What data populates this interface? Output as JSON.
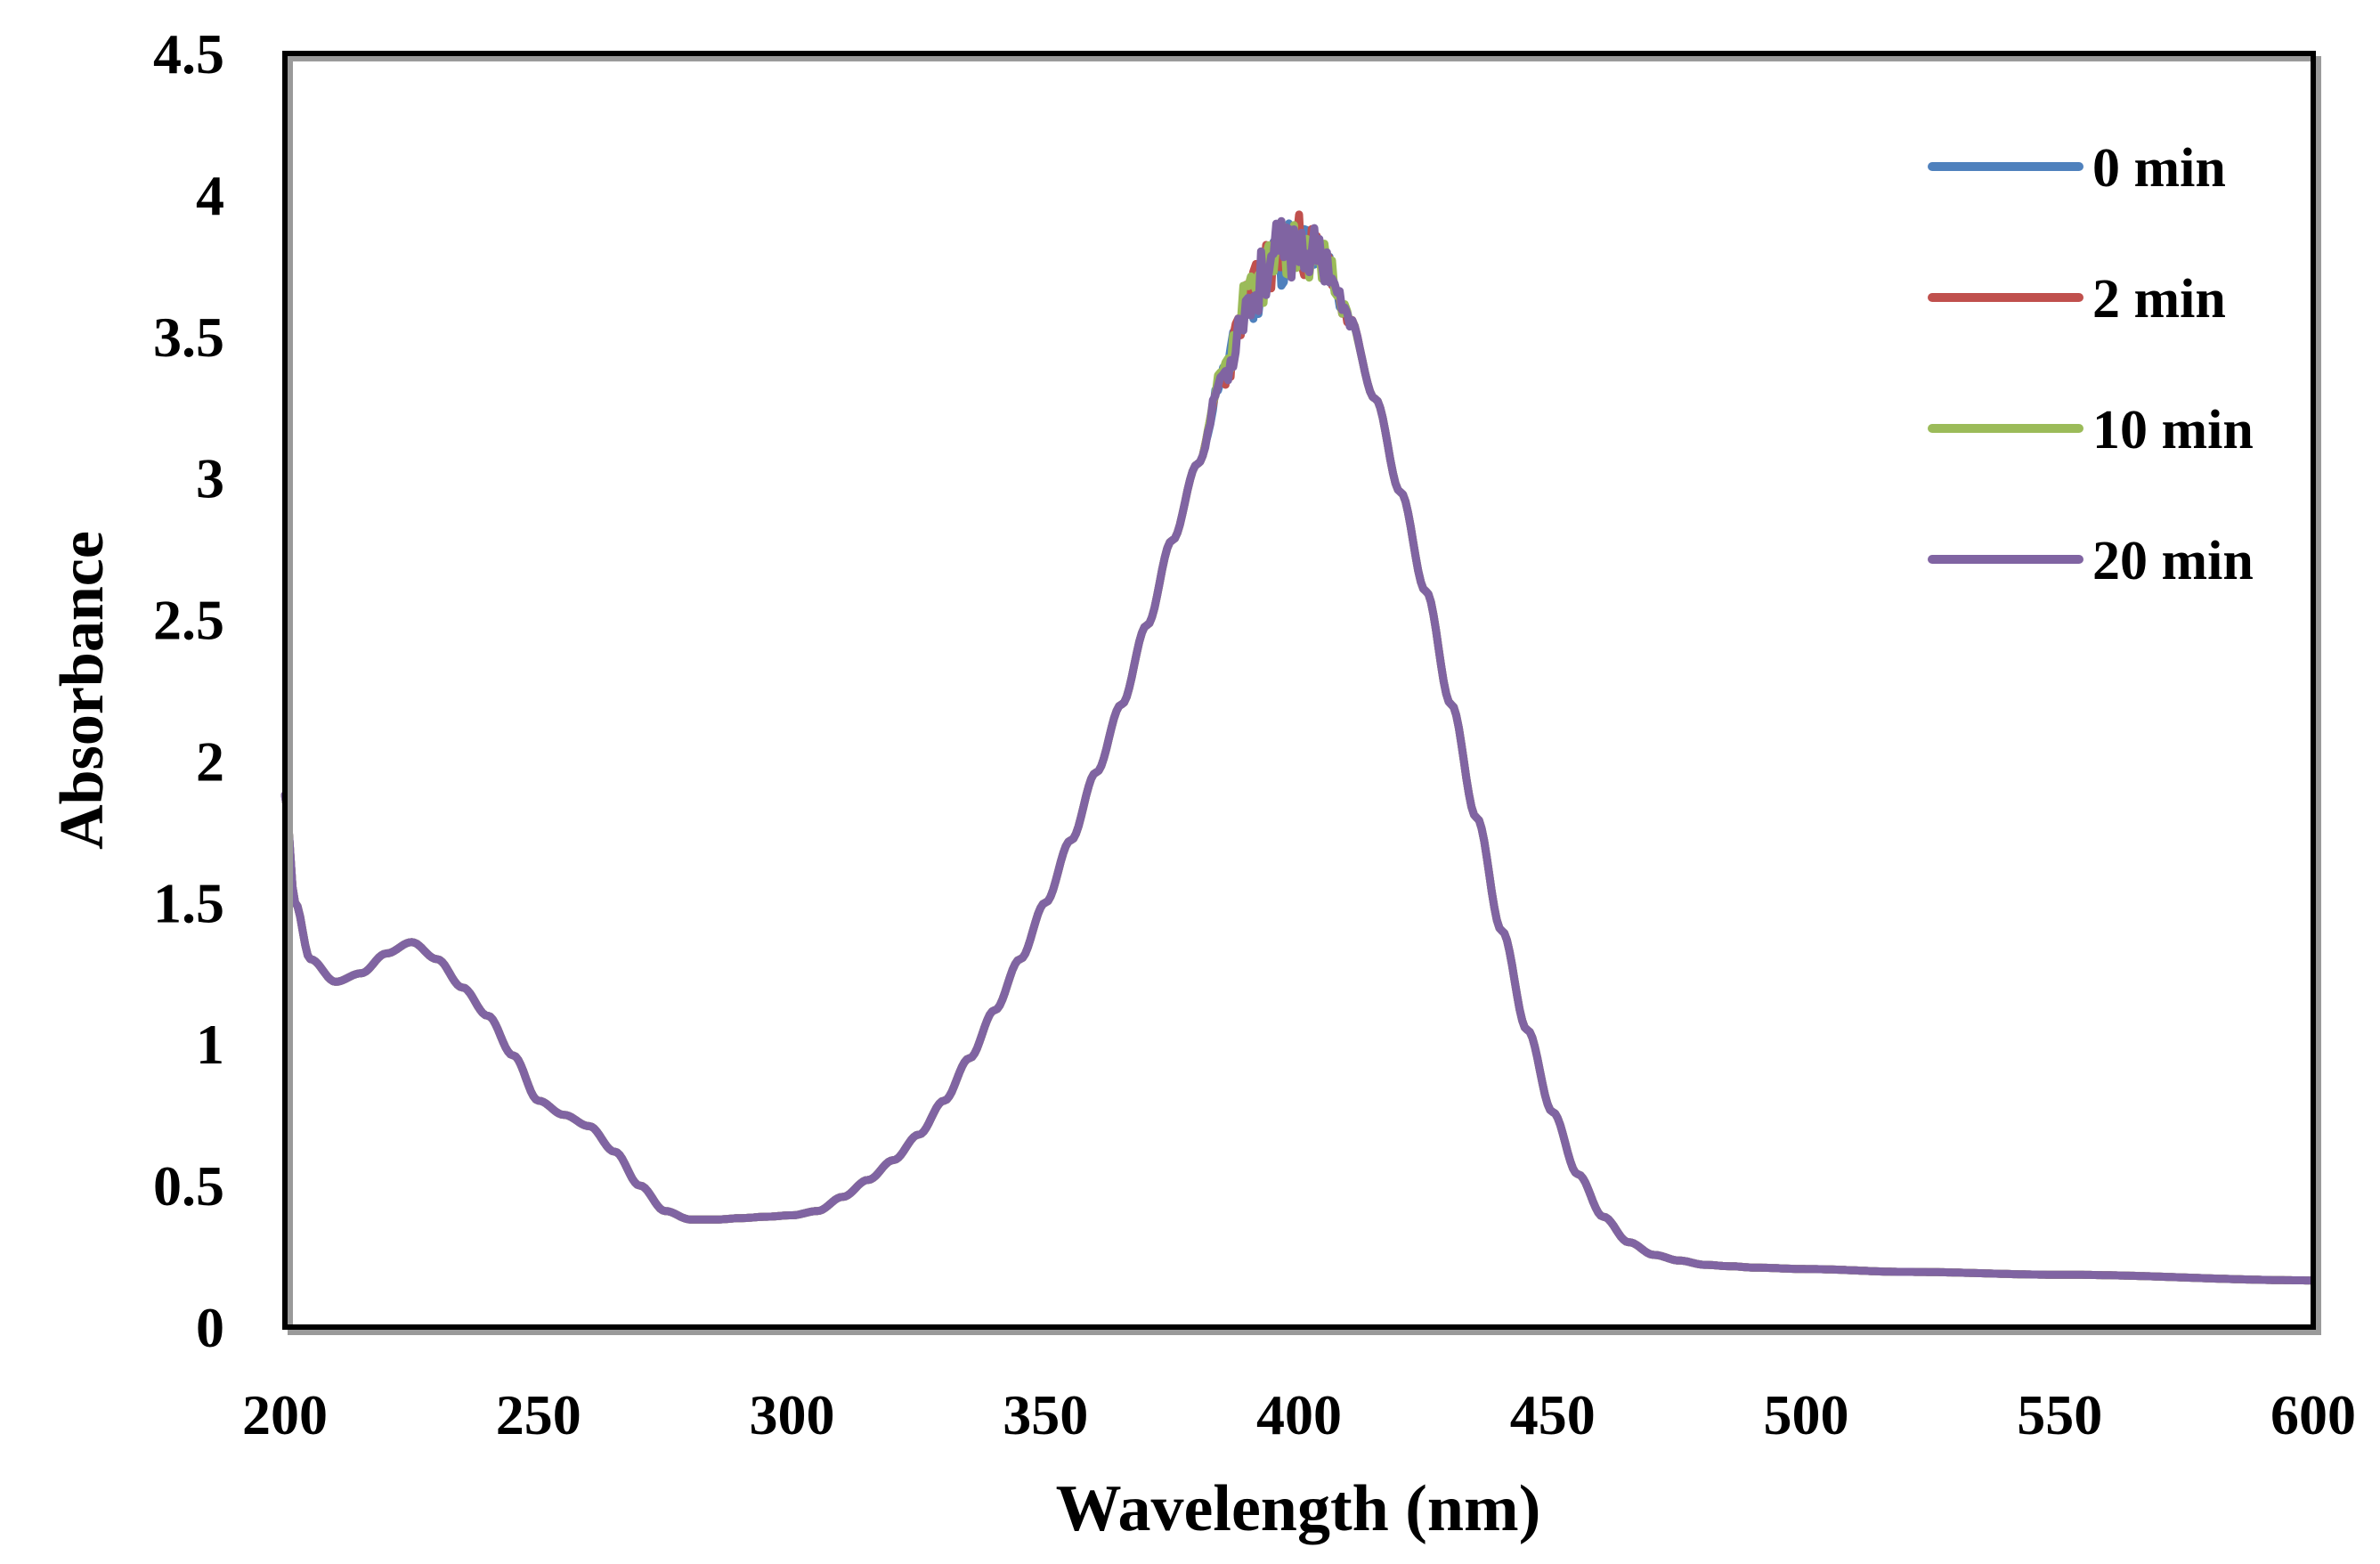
{
  "chart_data": {
    "type": "line",
    "title": "",
    "xlabel": "Wavelength (nm)",
    "ylabel": "Absorbance",
    "xlim": [
      200,
      600
    ],
    "ylim": [
      0,
      4.5
    ],
    "xticks": [
      200,
      250,
      300,
      350,
      400,
      450,
      500,
      550,
      600
    ],
    "xtick_labels": [
      "200",
      "250",
      "300",
      "350",
      "400",
      "450",
      "500",
      "550",
      "600"
    ],
    "yticks": [
      0,
      0.5,
      1,
      1.5,
      2,
      2.5,
      3,
      3.5,
      4,
      4.5
    ],
    "ytick_labels": [
      "0",
      "0.5",
      "1",
      "1.5",
      "2",
      "2.5",
      "3",
      "3.5",
      "4",
      "4.5"
    ],
    "grid": false,
    "legend_position": "top-right",
    "base_curve": {
      "x": [
        200,
        202,
        205,
        210,
        215,
        220,
        225,
        230,
        235,
        240,
        245,
        250,
        255,
        260,
        265,
        270,
        275,
        280,
        285,
        290,
        295,
        300,
        305,
        310,
        315,
        320,
        325,
        330,
        335,
        340,
        345,
        350,
        355,
        360,
        365,
        370,
        375,
        380,
        385,
        390,
        395,
        400,
        405,
        410,
        415,
        420,
        425,
        430,
        435,
        440,
        445,
        450,
        455,
        460,
        465,
        470,
        475,
        480,
        485,
        490,
        500,
        520,
        550,
        600
      ],
      "y": [
        1.88,
        1.5,
        1.3,
        1.22,
        1.25,
        1.32,
        1.36,
        1.3,
        1.2,
        1.1,
        0.96,
        0.8,
        0.75,
        0.71,
        0.62,
        0.5,
        0.41,
        0.38,
        0.38,
        0.385,
        0.39,
        0.395,
        0.41,
        0.46,
        0.52,
        0.59,
        0.68,
        0.8,
        0.95,
        1.12,
        1.3,
        1.5,
        1.72,
        1.96,
        2.2,
        2.48,
        2.78,
        3.05,
        3.35,
        3.6,
        3.75,
        3.8,
        3.75,
        3.55,
        3.28,
        2.95,
        2.6,
        2.2,
        1.8,
        1.4,
        1.05,
        0.76,
        0.54,
        0.39,
        0.3,
        0.255,
        0.235,
        0.22,
        0.215,
        0.21,
        0.205,
        0.195,
        0.185,
        0.165
      ]
    },
    "noise_range": [
      381,
      412
    ],
    "series": [
      {
        "name": "0 min",
        "label": "0 min",
        "color": "#4F81BD",
        "amplitude": 0.12,
        "seed": 11
      },
      {
        "name": "2 min",
        "label": "2 min",
        "color": "#C0504D",
        "amplitude": 0.12,
        "seed": 23
      },
      {
        "name": "10 min",
        "label": "10 min",
        "color": "#9BBB59",
        "amplitude": 0.12,
        "seed": 37
      },
      {
        "name": "20 min",
        "label": "20 min",
        "color": "#8064A2",
        "amplitude": 0.12,
        "seed": 53
      }
    ]
  }
}
